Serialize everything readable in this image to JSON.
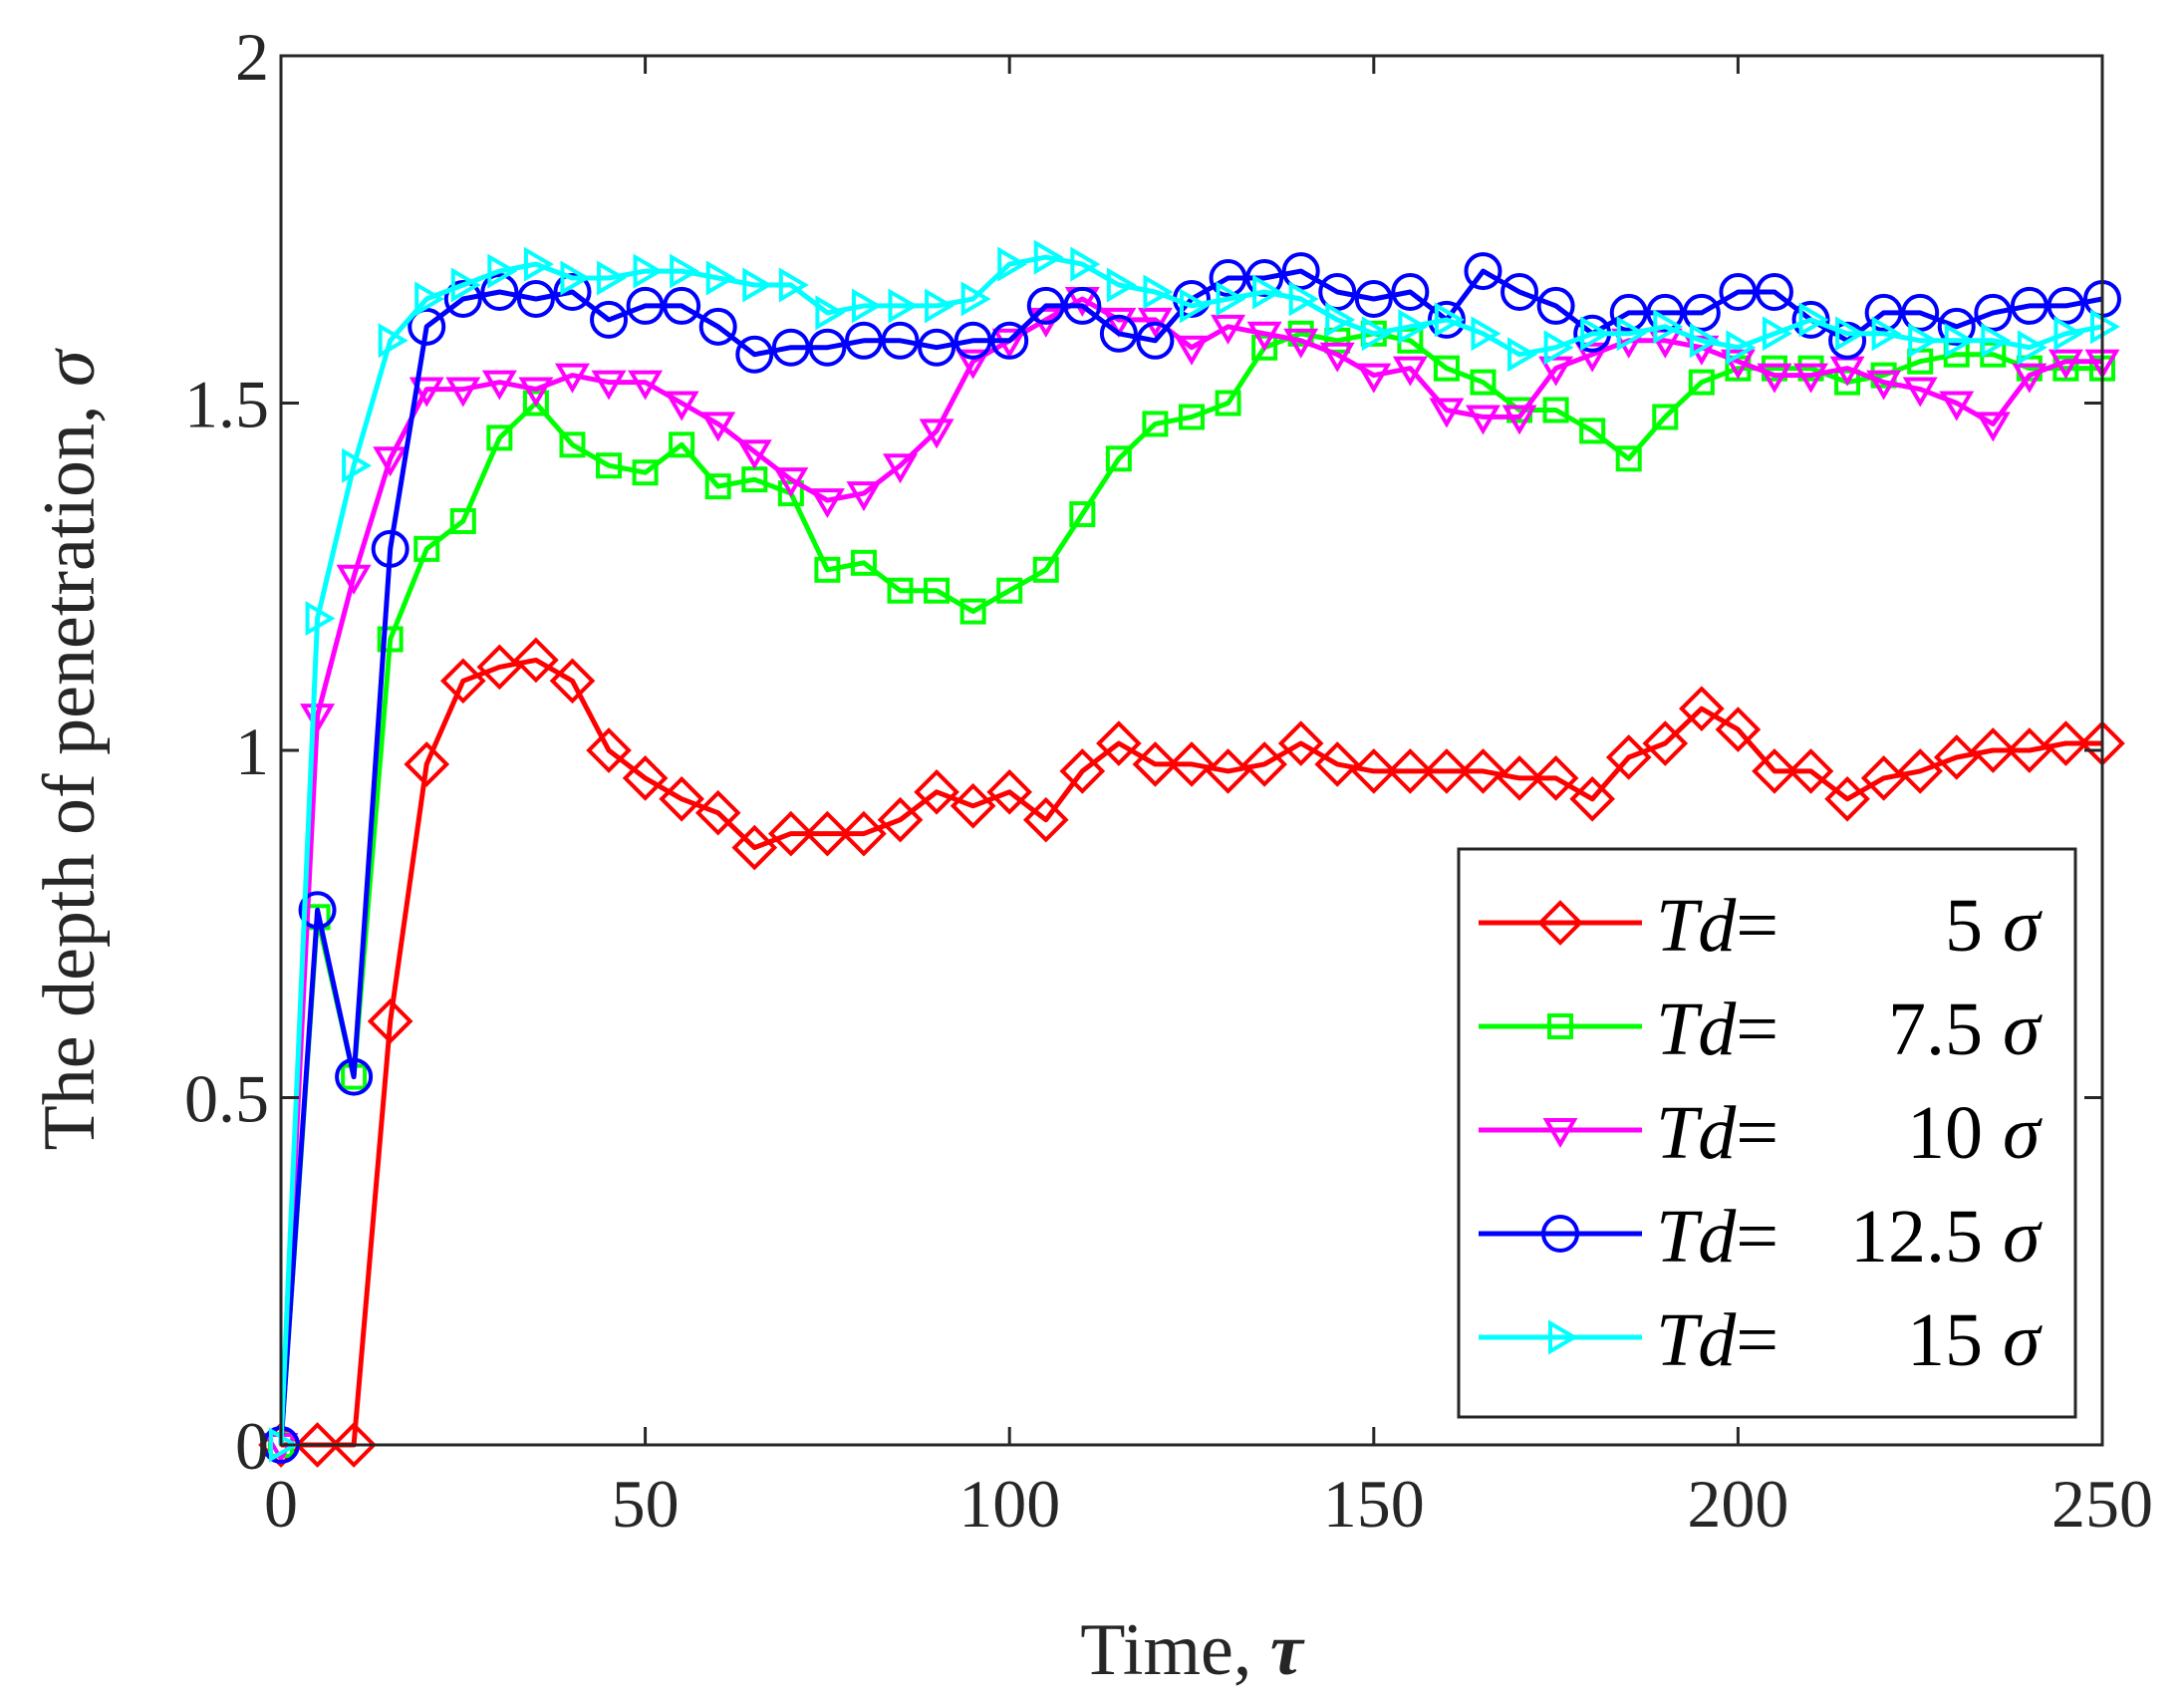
{
  "chart_data": {
    "type": "line",
    "title": "",
    "xlabel": "Time, ",
    "xlabel_symbol": "τ",
    "ylabel": "The depth of penetration, ",
    "ylabel_symbol": "σ",
    "xlim": [
      0,
      250
    ],
    "ylim": [
      0,
      2
    ],
    "xticks": [
      0,
      50,
      100,
      150,
      200,
      250
    ],
    "yticks": [
      0,
      0.5,
      1,
      1.5,
      2
    ],
    "xtick_labels": [
      "0",
      "50",
      "100",
      "150",
      "200",
      "250"
    ],
    "ytick_labels": [
      "0",
      "0.5",
      "1",
      "1.5",
      "2"
    ],
    "grid": false,
    "legend_position": "bottom-right",
    "series": [
      {
        "name": "Td=5σ",
        "legend_prefix": "Td",
        "legend_eq": "=",
        "legend_value": "5",
        "legend_unit": "σ",
        "color": "#ff0000",
        "marker": "diamond",
        "x": [
          0,
          5,
          10,
          15,
          20,
          25,
          30,
          35,
          40,
          45,
          50,
          55,
          60,
          65,
          70,
          75,
          80,
          85,
          90,
          95,
          100,
          105,
          110,
          115,
          120,
          125,
          130,
          135,
          140,
          145,
          150,
          155,
          160,
          165,
          170,
          175,
          180,
          185,
          190,
          195,
          200,
          205,
          210,
          215,
          220,
          225,
          230,
          235,
          240,
          245,
          250
        ],
        "y": [
          0,
          0,
          0,
          0.61,
          0.98,
          1.1,
          1.12,
          1.13,
          1.1,
          1.0,
          0.96,
          0.93,
          0.91,
          0.86,
          0.88,
          0.88,
          0.88,
          0.9,
          0.94,
          0.92,
          0.94,
          0.9,
          0.97,
          1.01,
          0.98,
          0.98,
          0.97,
          0.98,
          1.01,
          0.98,
          0.97,
          0.97,
          0.97,
          0.97,
          0.96,
          0.96,
          0.93,
          0.99,
          1.01,
          1.06,
          1.03,
          0.97,
          0.97,
          0.93,
          0.96,
          0.97,
          0.99,
          1.0,
          1.0,
          1.01,
          1.01
        ]
      },
      {
        "name": "Td=7.5σ",
        "legend_prefix": "Td",
        "legend_eq": "=",
        "legend_value": "7.5",
        "legend_unit": "σ",
        "color": "#00ff00",
        "marker": "square",
        "x": [
          0,
          5,
          10,
          15,
          20,
          25,
          30,
          35,
          40,
          45,
          50,
          55,
          60,
          65,
          70,
          75,
          80,
          85,
          90,
          95,
          100,
          105,
          110,
          115,
          120,
          125,
          130,
          135,
          140,
          145,
          150,
          155,
          160,
          165,
          170,
          175,
          180,
          185,
          190,
          195,
          200,
          205,
          210,
          215,
          220,
          225,
          230,
          235,
          240,
          245,
          250
        ],
        "y": [
          0,
          0.76,
          0.53,
          1.16,
          1.29,
          1.33,
          1.45,
          1.5,
          1.44,
          1.41,
          1.4,
          1.44,
          1.38,
          1.39,
          1.37,
          1.26,
          1.27,
          1.23,
          1.23,
          1.2,
          1.23,
          1.26,
          1.34,
          1.42,
          1.47,
          1.48,
          1.5,
          1.58,
          1.6,
          1.59,
          1.6,
          1.59,
          1.55,
          1.53,
          1.49,
          1.49,
          1.46,
          1.42,
          1.48,
          1.53,
          1.55,
          1.55,
          1.55,
          1.53,
          1.54,
          1.56,
          1.57,
          1.57,
          1.55,
          1.55,
          1.55
        ]
      },
      {
        "name": "Td=10σ",
        "legend_prefix": "Td",
        "legend_eq": "=",
        "legend_value": "10",
        "legend_unit": "σ",
        "color": "#ff00ff",
        "marker": "triangle-down",
        "x": [
          0,
          5,
          10,
          15,
          20,
          25,
          30,
          35,
          40,
          45,
          50,
          55,
          60,
          65,
          70,
          75,
          80,
          85,
          90,
          95,
          100,
          105,
          110,
          115,
          120,
          125,
          130,
          135,
          140,
          145,
          150,
          155,
          160,
          165,
          170,
          175,
          180,
          185,
          190,
          195,
          200,
          205,
          210,
          215,
          220,
          225,
          230,
          235,
          240,
          245,
          250
        ],
        "y": [
          0,
          1.05,
          1.25,
          1.42,
          1.52,
          1.52,
          1.53,
          1.52,
          1.54,
          1.53,
          1.53,
          1.5,
          1.47,
          1.43,
          1.39,
          1.36,
          1.37,
          1.41,
          1.46,
          1.56,
          1.59,
          1.62,
          1.65,
          1.62,
          1.62,
          1.58,
          1.61,
          1.6,
          1.59,
          1.57,
          1.54,
          1.55,
          1.49,
          1.48,
          1.48,
          1.55,
          1.57,
          1.59,
          1.59,
          1.58,
          1.56,
          1.54,
          1.54,
          1.55,
          1.53,
          1.52,
          1.5,
          1.47,
          1.54,
          1.56,
          1.56
        ]
      },
      {
        "name": "Td=12.5σ",
        "legend_prefix": "Td",
        "legend_eq": "=",
        "legend_value": "12.5",
        "legend_unit": "σ",
        "color": "#0000ff",
        "marker": "circle",
        "x": [
          0,
          5,
          10,
          15,
          20,
          25,
          30,
          35,
          40,
          45,
          50,
          55,
          60,
          65,
          70,
          75,
          80,
          85,
          90,
          95,
          100,
          105,
          110,
          115,
          120,
          125,
          130,
          135,
          140,
          145,
          150,
          155,
          160,
          165,
          170,
          175,
          180,
          185,
          190,
          195,
          200,
          205,
          210,
          215,
          220,
          225,
          230,
          235,
          240,
          245,
          250
        ],
        "y": [
          0,
          0.77,
          0.53,
          1.29,
          1.61,
          1.65,
          1.66,
          1.65,
          1.66,
          1.62,
          1.64,
          1.64,
          1.61,
          1.57,
          1.58,
          1.58,
          1.59,
          1.59,
          1.58,
          1.59,
          1.59,
          1.64,
          1.64,
          1.6,
          1.59,
          1.65,
          1.68,
          1.68,
          1.69,
          1.66,
          1.65,
          1.66,
          1.62,
          1.69,
          1.66,
          1.64,
          1.6,
          1.63,
          1.63,
          1.63,
          1.66,
          1.66,
          1.62,
          1.59,
          1.63,
          1.63,
          1.61,
          1.63,
          1.64,
          1.64,
          1.65
        ]
      },
      {
        "name": "Td=15σ",
        "legend_prefix": "Td",
        "legend_eq": "=",
        "legend_value": "15",
        "legend_unit": "σ",
        "color": "#00ffff",
        "marker": "triangle-right",
        "x": [
          0,
          5,
          10,
          15,
          20,
          25,
          30,
          35,
          40,
          45,
          50,
          55,
          60,
          65,
          70,
          75,
          80,
          85,
          90,
          95,
          100,
          105,
          110,
          115,
          120,
          125,
          130,
          135,
          140,
          145,
          150,
          155,
          160,
          165,
          170,
          175,
          180,
          185,
          190,
          195,
          200,
          205,
          210,
          215,
          220,
          225,
          230,
          235,
          240,
          245,
          250
        ],
        "y": [
          0,
          1.19,
          1.41,
          1.59,
          1.65,
          1.67,
          1.69,
          1.7,
          1.68,
          1.68,
          1.69,
          1.69,
          1.68,
          1.67,
          1.67,
          1.63,
          1.64,
          1.64,
          1.64,
          1.65,
          1.7,
          1.71,
          1.7,
          1.67,
          1.66,
          1.64,
          1.65,
          1.66,
          1.65,
          1.62,
          1.6,
          1.61,
          1.62,
          1.6,
          1.57,
          1.58,
          1.6,
          1.6,
          1.61,
          1.59,
          1.58,
          1.6,
          1.62,
          1.6,
          1.6,
          1.59,
          1.59,
          1.59,
          1.58,
          1.6,
          1.61
        ]
      }
    ]
  }
}
